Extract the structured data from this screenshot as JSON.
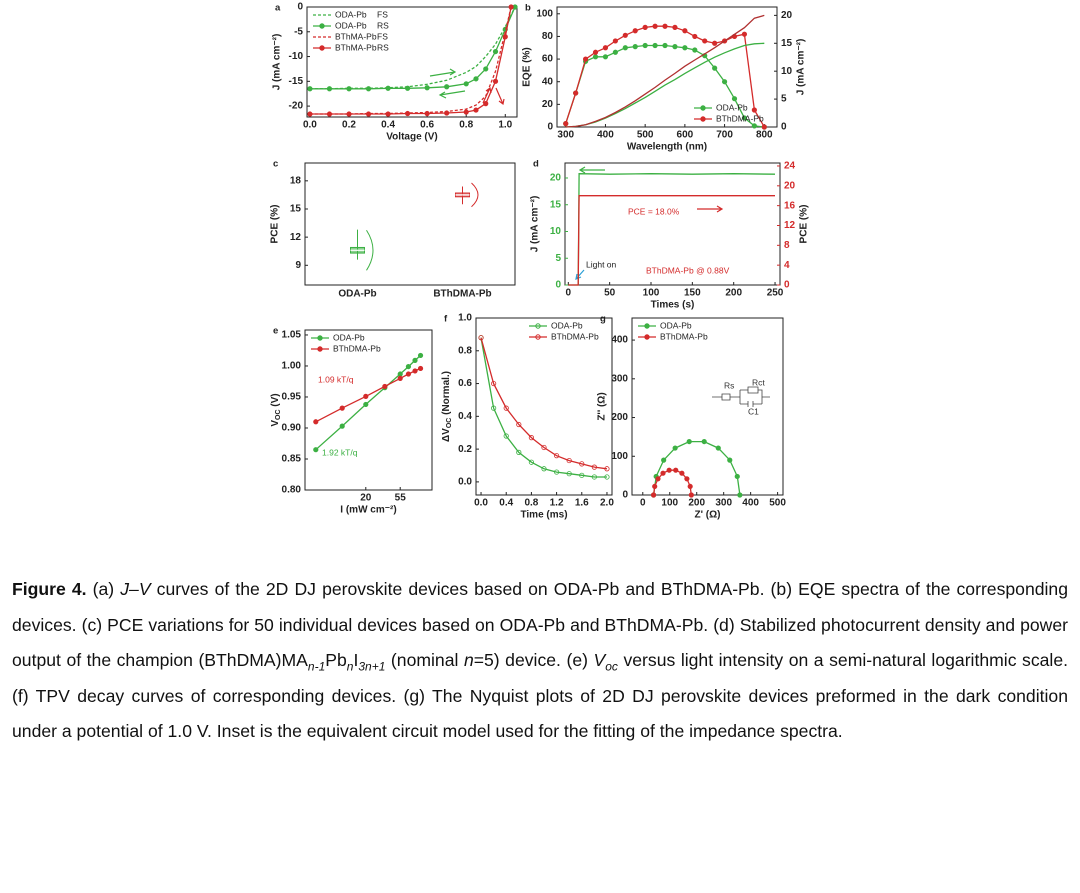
{
  "chart_data": [
    {
      "type": "line",
      "label": "a",
      "xlabel": "Voltage (V)",
      "ylabel": "J (mA cm⁻²)",
      "xlim": [
        -0.015,
        1.06
      ],
      "ylim": [
        -22.2,
        0
      ],
      "xticks": [
        {
          "value": 0,
          "label": "0.0"
        },
        0.2,
        0.4,
        0.6,
        0.8,
        {
          "value": 1,
          "label": "1.0"
        }
      ],
      "yticks": [
        0,
        -5,
        -10,
        -15,
        -20
      ],
      "legend": "upper left",
      "series": [
        {
          "name": "ODA-Pb",
          "scan": "FS",
          "color": "#3cb043",
          "dash": true,
          "x": [
            0,
            0.1,
            0.2,
            0.3,
            0.4,
            0.5,
            0.6,
            0.7,
            0.8,
            0.85,
            0.9,
            0.95,
            1.0,
            1.05
          ],
          "values": [
            -16.5,
            -16.5,
            -16.4,
            -16.4,
            -16.3,
            -16.1,
            -15.6,
            -14.8,
            -13.2,
            -12,
            -10,
            -7.5,
            -4,
            0
          ]
        },
        {
          "name": "ODA-Pb",
          "scan": "RS",
          "color": "#3cb043",
          "marker": "circle",
          "x": [
            0,
            0.1,
            0.2,
            0.3,
            0.4,
            0.5,
            0.6,
            0.7,
            0.8,
            0.85,
            0.9,
            0.95,
            1.0,
            1.05
          ],
          "values": [
            -16.5,
            -16.5,
            -16.5,
            -16.5,
            -16.4,
            -16.4,
            -16.3,
            -16.1,
            -15.5,
            -14.5,
            -12.5,
            -9,
            -4.5,
            0
          ]
        },
        {
          "name": "BThMA-Pb",
          "scan": "FS",
          "color": "#d42b2b",
          "dash": true,
          "x": [
            0,
            0.1,
            0.2,
            0.3,
            0.4,
            0.5,
            0.6,
            0.7,
            0.8,
            0.85,
            0.9,
            0.95,
            1.0,
            1.03
          ],
          "values": [
            -21.6,
            -21.6,
            -21.6,
            -21.5,
            -21.5,
            -21.4,
            -21.3,
            -21.1,
            -20.6,
            -19.8,
            -18,
            -13,
            -5,
            0
          ]
        },
        {
          "name": "BThMA-Pb",
          "scan": "RS",
          "color": "#d42b2b",
          "marker": "circle",
          "x": [
            0,
            0.1,
            0.2,
            0.3,
            0.4,
            0.5,
            0.6,
            0.7,
            0.8,
            0.85,
            0.9,
            0.95,
            1.0,
            1.03
          ],
          "values": [
            -21.6,
            -21.6,
            -21.6,
            -21.6,
            -21.6,
            -21.5,
            -21.5,
            -21.4,
            -21.2,
            -20.8,
            -19.5,
            -15,
            -6,
            0
          ]
        }
      ]
    },
    {
      "type": "line",
      "label": "b",
      "xlabel": "Wavelength (nm)",
      "ylabel": "EQE (%)",
      "y2label": "J (mA cm⁻²)",
      "xlim": [
        278,
        832
      ],
      "ylim": [
        0,
        106
      ],
      "y2lim": [
        0,
        21.5
      ],
      "xticks": [
        300,
        400,
        500,
        600,
        700,
        800
      ],
      "yticks": [
        0,
        20,
        40,
        60,
        80,
        100
      ],
      "y2ticks": [
        0,
        5,
        10,
        15,
        20
      ],
      "legend": "lower right",
      "x": [
        300,
        325,
        350,
        375,
        400,
        425,
        450,
        475,
        500,
        525,
        550,
        575,
        600,
        625,
        650,
        675,
        700,
        725,
        750,
        775,
        800
      ],
      "series": [
        {
          "name": "ODA-Pb",
          "color": "#3cb043",
          "marker": "circle",
          "values": [
            3,
            30,
            58,
            62,
            62,
            66,
            70,
            71,
            72,
            72,
            72,
            71,
            70,
            68,
            63,
            52,
            40,
            25,
            8,
            1,
            0
          ]
        },
        {
          "name": "BThDMA-Pb",
          "color": "#d42b2b",
          "marker": "circle",
          "values": [
            3,
            30,
            60,
            66,
            70,
            76,
            81,
            85,
            88,
            89,
            89,
            88,
            85,
            80,
            76,
            74,
            76,
            80,
            82,
            15,
            0
          ]
        },
        {
          "color": "#3cb043",
          "axis": "y2",
          "values": [
            0,
            0.1,
            0.4,
            0.9,
            1.6,
            2.4,
            3.3,
            4.3,
            5.3,
            6.4,
            7.5,
            8.5,
            9.6,
            10.6,
            11.6,
            12.5,
            13.3,
            14,
            14.6,
            14.9,
            15
          ]
        },
        {
          "color": "#b03030",
          "axis": "y2",
          "values": [
            0,
            0.1,
            0.4,
            1,
            1.7,
            2.6,
            3.6,
            4.7,
            5.9,
            7.1,
            8.4,
            9.6,
            10.9,
            12,
            13.1,
            14.2,
            15.4,
            16.6,
            17.8,
            19.5,
            20
          ]
        }
      ]
    },
    {
      "type": "box",
      "label": "c",
      "ylabel": "PCE (%)",
      "categories": [
        "ODA-Pb",
        "BThDMA-Pb"
      ],
      "ylim": [
        6.9,
        19.9
      ],
      "yticks": [
        9,
        12,
        15,
        18
      ],
      "colors": [
        "#3cb043",
        "#d42b2b"
      ],
      "boxes": [
        {
          "min": 9.6,
          "q1": 10.3,
          "median": 10.6,
          "q3": 10.9,
          "max": 12.8
        },
        {
          "min": 15.5,
          "q1": 16.3,
          "median": 16.5,
          "q3": 16.7,
          "max": 17.4
        }
      ]
    },
    {
      "type": "line",
      "label": "d",
      "xlabel": "Times (s)",
      "ylabel": "J (mA cm⁻²)",
      "y2label": "PCE (%)",
      "xlim": [
        -4,
        256
      ],
      "ylim": [
        0,
        22.8
      ],
      "y2lim": [
        0,
        24.6
      ],
      "xticks": [
        0,
        50,
        100,
        150,
        200,
        250
      ],
      "yticks": [
        0,
        5,
        10,
        15,
        20
      ],
      "y2ticks": [
        0,
        4,
        8,
        12,
        16,
        20,
        24
      ],
      "ycolor": "#3cb043",
      "y2color": "#d42b2b",
      "x": [
        0,
        12,
        13,
        50,
        100,
        150,
        200,
        250
      ],
      "series": [
        {
          "color": "#3cb043",
          "values": [
            0,
            0,
            20.8,
            20.7,
            20.8,
            20.7,
            20.8,
            20.7
          ]
        },
        {
          "color": "#d42b2b",
          "axis": "y2",
          "values": [
            0,
            0,
            18,
            18,
            18,
            18,
            18,
            18
          ]
        }
      ],
      "annotations": [
        "PCE = 18.0%",
        "Light on",
        "BThDMA-Pb  @ 0.88V"
      ]
    },
    {
      "type": "line",
      "label": "e",
      "xlabel": "I (mW cm⁻²)",
      "ylabel": [
        "V",
        "OC",
        " (V)"
      ],
      "xlog": true,
      "xlim": [
        3.35,
        140
      ],
      "ylim": [
        0.8,
        1.058
      ],
      "xticks": [
        20,
        55
      ],
      "yticks": [
        {
          "value": 0.8,
          "label": "0.80"
        },
        0.85,
        {
          "value": 0.9,
          "label": "0.90"
        },
        0.95,
        {
          "value": 1,
          "label": "1.00"
        },
        1.05
      ],
      "legend": "upper left",
      "x": [
        4.6,
        10,
        20,
        35,
        55,
        70,
        85,
        100
      ],
      "series": [
        {
          "name": "ODA-Pb",
          "color": "#3cb043",
          "marker": "circle",
          "values": [
            0.865,
            0.903,
            0.938,
            0.965,
            0.987,
            0.999,
            1.009,
            1.017
          ]
        },
        {
          "name": "BThDMA-Pb",
          "color": "#d42b2b",
          "marker": "circle",
          "values": [
            0.91,
            0.932,
            0.951,
            0.967,
            0.98,
            0.987,
            0.992,
            0.996
          ]
        }
      ],
      "annotations": [
        "1.09 kT/q",
        "1.92 kT/q"
      ]
    },
    {
      "type": "line",
      "label": "f",
      "xlabel": "Time (ms)",
      "ylabel": [
        "ΔV",
        "OC",
        " (Normal.)"
      ],
      "xlim": [
        -0.08,
        2.08
      ],
      "ylim": [
        -0.08,
        1.0
      ],
      "xticks": [
        {
          "value": 0,
          "label": "0.0"
        },
        0.4,
        0.8,
        1.2,
        1.6,
        {
          "value": 2,
          "label": "2.0"
        }
      ],
      "yticks": [
        {
          "value": 0,
          "label": "0.0"
        },
        0.2,
        0.4,
        0.6,
        0.8,
        {
          "value": 1,
          "label": "1.0"
        }
      ],
      "legend": "upper right",
      "x": [
        0,
        0.2,
        0.4,
        0.6,
        0.8,
        1.0,
        1.2,
        1.4,
        1.6,
        1.8,
        2.0
      ],
      "series": [
        {
          "name": "ODA-Pb",
          "color": "#3cb043",
          "marker": "open-circle",
          "values": [
            0.88,
            0.45,
            0.28,
            0.18,
            0.12,
            0.08,
            0.06,
            0.05,
            0.04,
            0.03,
            0.03
          ]
        },
        {
          "name": "BThDMA-Pb",
          "color": "#d42b2b",
          "marker": "open-circle",
          "values": [
            0.88,
            0.6,
            0.45,
            0.35,
            0.27,
            0.21,
            0.16,
            0.13,
            0.11,
            0.09,
            0.08
          ]
        }
      ]
    },
    {
      "type": "line",
      "label": "g",
      "xlabel": "Z' (Ω)",
      "ylabel": "Z'' (Ω)",
      "xlim": [
        -40,
        520
      ],
      "ylim": [
        0,
        457
      ],
      "xticks": [
        0,
        100,
        200,
        300,
        400,
        500
      ],
      "yticks": [
        0,
        100,
        200,
        300,
        400
      ],
      "legend": "upper left",
      "series": [
        {
          "name": "ODA-Pb",
          "color": "#3cb043",
          "marker": "circle",
          "x": [
            360,
            350.4,
            322.6,
            280,
            227.8,
            172.2,
            120,
            77.4,
            49.6,
            40
          ],
          "values": [
            0,
            47.9,
            90,
            121.2,
            137.9,
            137.9,
            121.2,
            90,
            47.9,
            0
          ]
        },
        {
          "name": "BThDMA-Pb",
          "color": "#d42b2b",
          "marker": "circle",
          "x": [
            180,
            175.8,
            163.6,
            145,
            122.2,
            97.8,
            75,
            56.4,
            44.2,
            40
          ],
          "values": [
            0,
            22.2,
            41.8,
            56.3,
            64,
            64,
            56.3,
            41.8,
            22.2,
            0
          ]
        }
      ],
      "annotations": [
        "Rs",
        "Rct",
        "C1"
      ]
    }
  ],
  "caption": [
    "Figure 4.",
    " (a) ",
    "J–V",
    " curves of the 2D DJ perovskite devices based on ODA-Pb and BThDMA-Pb. (b) EQE spectra of the corresponding devices. (c) PCE variations for 50 individual devices based on ODA-Pb and BThDMA-Pb. (d) Stabilized photocurrent density and power output of the champion (BThDMA)MA",
    "n-1",
    "Pb",
    "n",
    "I",
    "3n+1",
    " (nominal ",
    "n",
    "=5) device. (e) ",
    "V",
    "oc",
    " versus light intensity on a semi-natural logarithmic scale. (f) TPV decay curves of corresponding devices. (g) The Nyquist plots of 2D DJ perovskite devices preformed in the dark condition under a potential of 1.0 V. Inset is the equivalent circuit model used for the fitting of the impedance spectra."
  ]
}
